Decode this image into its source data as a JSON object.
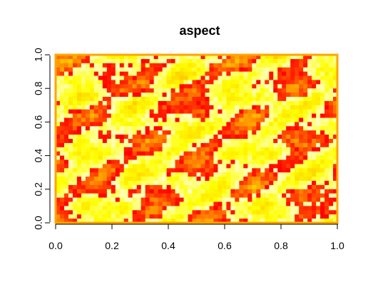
{
  "chart_data": {
    "type": "heatmap",
    "title": "aspect",
    "xlabel": "",
    "ylabel": "",
    "xlim": [
      0,
      1
    ],
    "ylim": [
      0,
      1
    ],
    "x_ticks": [
      0.0,
      0.2,
      0.4,
      0.6,
      0.8,
      1.0
    ],
    "y_ticks": [
      0.0,
      0.2,
      0.4,
      0.6,
      0.8,
      1.0
    ],
    "x_tick_labels": [
      "0.0",
      "0.2",
      "0.4",
      "0.6",
      "0.8",
      "1.0"
    ],
    "y_tick_labels": [
      "0.0",
      "0.2",
      "0.4",
      "0.6",
      "0.8",
      "1.0"
    ],
    "grid": false,
    "legend": "none",
    "color_scale": [
      "#ff0000",
      "#ff8000",
      "#ffd700",
      "#ffff00",
      "#ffffc0"
    ],
    "border_color": "#ffa500"
  }
}
